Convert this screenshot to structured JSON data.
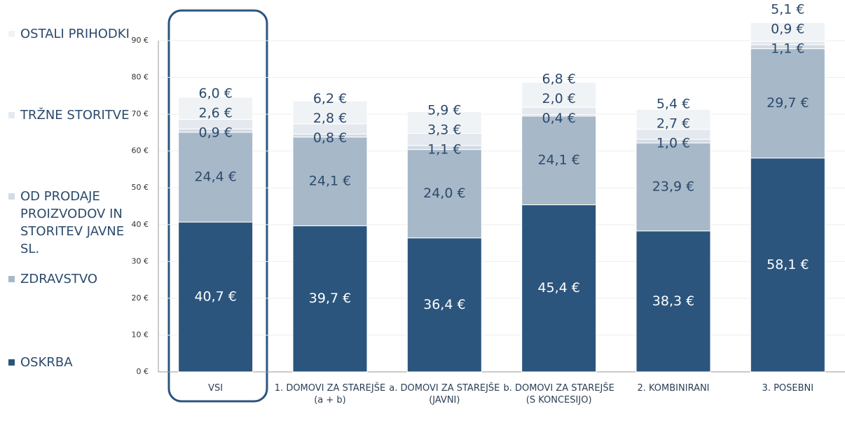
{
  "chart_data": {
    "type": "bar",
    "stacked": true,
    "categories": [
      "VSI",
      "1. DOMOVI ZA STAREJŠE (a + b)",
      "a. DOMOVI ZA STAREJŠE (JAVNI)",
      "b. DOMOVI ZA STAREJŠE (S KONCESIJO)",
      "2. KOMBINIRANI",
      "3. POSEBNI"
    ],
    "series": [
      {
        "name": "OSKRBA",
        "color": "#2b557d",
        "values": [
          40.7,
          39.7,
          36.4,
          45.4,
          38.3,
          58.1
        ],
        "value_labels": [
          "40,7 €",
          "39,7 €",
          "36,4 €",
          "45,4 €",
          "38,3 €",
          "58,1 €"
        ]
      },
      {
        "name": "ZDRAVSTVO",
        "color": "#a7b8c9",
        "values": [
          24.4,
          24.1,
          24.0,
          24.1,
          23.9,
          29.7
        ],
        "value_labels": [
          "24,4 €",
          "24,1 €",
          "24,0 €",
          "24,1 €",
          "23,9 €",
          "29,7 €"
        ]
      },
      {
        "name": "OD PRODAJE PROIZVODOV IN STORITEV JAVNE SL.",
        "color": "#d3dbe4",
        "values": [
          0.9,
          0.8,
          1.1,
          0.4,
          1.0,
          1.1
        ],
        "value_labels": [
          "0,9 €",
          "0,8 €",
          "1,1 €",
          "0,4 €",
          "1,0 €",
          "1,1 €"
        ]
      },
      {
        "name": "TRŽNE STORITVE",
        "color": "#e4e9ef",
        "values": [
          2.6,
          2.8,
          3.3,
          2.0,
          2.7,
          0.9
        ],
        "value_labels": [
          "2,6 €",
          "2,8 €",
          "3,3 €",
          "2,0 €",
          "2,7 €",
          "0,9 €"
        ]
      },
      {
        "name": "OSTALI PRIHODKI",
        "color": "#f0f3f6",
        "values": [
          6.0,
          6.2,
          5.9,
          6.8,
          5.4,
          5.1
        ],
        "value_labels": [
          "6,0 €",
          "6,2 €",
          "5,9 €",
          "6,8 €",
          "5,4 €",
          "5,1 €"
        ]
      }
    ],
    "ylim": [
      0,
      90
    ],
    "yticks": [
      {
        "value": 0,
        "label": "0 €"
      },
      {
        "value": 10,
        "label": "10 €"
      },
      {
        "value": 20,
        "label": "20 €"
      },
      {
        "value": 30,
        "label": "30 €"
      },
      {
        "value": 40,
        "label": "40 €"
      },
      {
        "value": 50,
        "label": "50 €"
      },
      {
        "value": 60,
        "label": "60 €"
      },
      {
        "value": 70,
        "label": "70 €"
      },
      {
        "value": 80,
        "label": "80 €"
      },
      {
        "value": 90,
        "label": "90 €"
      }
    ],
    "grid": true
  }
}
